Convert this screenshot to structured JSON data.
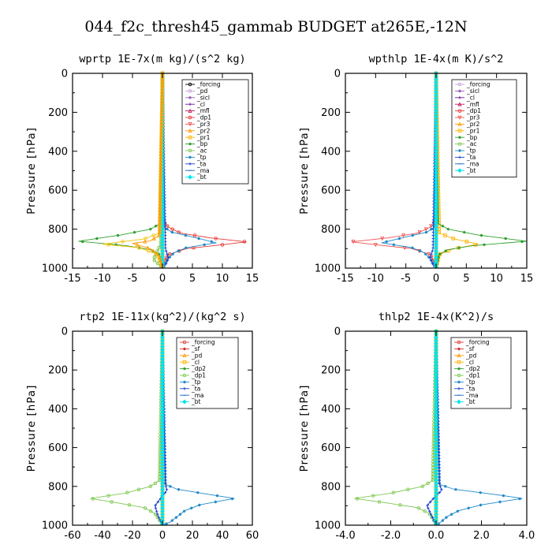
{
  "figure_title": "044_f2c_thresh45_gammab  BUDGET at265E,-12N",
  "chart_data": [
    {
      "type": "line",
      "title": "wprtp   1E-7x(m kg)/(s^2 kg)",
      "ylabel": "Pressure [hPa]",
      "xlim": [
        -15,
        15
      ],
      "ylim": [
        1000,
        0
      ],
      "xticks": [
        -15,
        -10,
        -5,
        0,
        5,
        10,
        15
      ],
      "xtick_labels": [
        "-15",
        "-10",
        "-5",
        "0",
        "5",
        "10",
        "15"
      ],
      "yticks": [
        0,
        200,
        400,
        600,
        800,
        1000
      ],
      "ytick_labels": [
        "0",
        "200",
        "400",
        "600",
        "800",
        "1000"
      ],
      "legend_position": "top-right",
      "series": [
        {
          "name": "_forcing",
          "color": "#000000",
          "marker": "circle",
          "x": [
            0,
            0
          ],
          "y": [
            0,
            1000
          ]
        },
        {
          "name": "_pd",
          "color": "#c9a0dc",
          "marker": "circle",
          "x": [
            0,
            0
          ],
          "y": [
            0,
            1000
          ]
        },
        {
          "name": "_sicl",
          "color": "#9b59b6",
          "marker": "star",
          "x": [
            0,
            0
          ],
          "y": [
            0,
            1000
          ]
        },
        {
          "name": "_cl",
          "color": "#6a1b9a",
          "marker": "plus",
          "x": [
            0,
            0
          ],
          "y": [
            0,
            1000
          ]
        },
        {
          "name": "_mfl",
          "color": "#c2185b",
          "marker": "triangle",
          "x": [
            0,
            0
          ],
          "y": [
            0,
            1000
          ]
        },
        {
          "name": "_dp1",
          "color": "#e53935",
          "marker": "circle",
          "x": [
            0,
            0.2,
            1,
            3,
            8,
            14,
            10,
            4,
            1,
            0.2,
            0
          ],
          "y": [
            0,
            760,
            790,
            820,
            845,
            865,
            880,
            900,
            930,
            970,
            1000
          ]
        },
        {
          "name": "_pr3",
          "color": "#ef5350",
          "marker": "triangle-down",
          "x": [
            0,
            0
          ],
          "y": [
            0,
            1000
          ]
        },
        {
          "name": "_pr2",
          "color": "#ff9800",
          "marker": "triangle",
          "x": [
            0,
            0
          ],
          "y": [
            0,
            1000
          ]
        },
        {
          "name": "_pr1",
          "color": "#ffb300",
          "marker": "square",
          "x": [
            0,
            0
          ],
          "y": [
            0,
            1000
          ]
        },
        {
          "name": "_bp",
          "color": "#2e9e2e",
          "marker": "star",
          "x": [
            0,
            -0.3,
            -2,
            -7,
            -14,
            -6,
            -2,
            -0.5,
            0
          ],
          "y": [
            0,
            770,
            800,
            830,
            862,
            885,
            905,
            930,
            1000
          ]
        },
        {
          "name": "_ac",
          "color": "#7ec850",
          "marker": "circle",
          "x": [
            0,
            -0.3,
            -1,
            -1.5,
            -0.5,
            0
          ],
          "y": [
            0,
            880,
            920,
            955,
            985,
            1000
          ]
        },
        {
          "name": "_tp",
          "color": "#1e88c8",
          "marker": "star",
          "x": [
            0,
            0.3,
            1.5,
            5,
            9,
            4,
            2,
            1,
            0.3,
            0
          ],
          "y": [
            0,
            790,
            815,
            840,
            870,
            895,
            920,
            950,
            980,
            1000
          ]
        },
        {
          "name": "_ta",
          "color": "#1a3fcf",
          "marker": "plus",
          "x": [
            0,
            0.5,
            1,
            0.5,
            0
          ],
          "y": [
            0,
            900,
            950,
            985,
            1000
          ]
        },
        {
          "name": "_ma",
          "color": "#1565c0",
          "marker": "dash",
          "x": [
            0,
            0
          ],
          "y": [
            0,
            1000
          ]
        },
        {
          "name": "_bt",
          "color": "#00e5ee",
          "marker": "diamond",
          "x": [
            0,
            0
          ],
          "y": [
            0,
            1000
          ]
        },
        {
          "name": "",
          "color": "#f1c40f",
          "marker": "circle",
          "x": [
            0,
            -0.5,
            -3,
            -10,
            -4,
            -1,
            0
          ],
          "y": [
            0,
            820,
            850,
            877,
            895,
            925,
            1000
          ]
        },
        {
          "name": "",
          "color": "#ff9800",
          "marker": "triangle",
          "x": [
            0,
            -0.5,
            -2,
            -5,
            -2,
            -0.5,
            0
          ],
          "y": [
            0,
            830,
            860,
            873,
            900,
            940,
            1000
          ]
        }
      ]
    },
    {
      "type": "line",
      "title": "wpthlp   1E-4x(m K)/s^2",
      "ylabel": "Pressure [hPa]",
      "xlim": [
        -15,
        15
      ],
      "ylim": [
        1000,
        0
      ],
      "xticks": [
        -15,
        -10,
        -5,
        0,
        5,
        10,
        15
      ],
      "xtick_labels": [
        "-15",
        "-10",
        "-5",
        "0",
        "5",
        "10",
        "15"
      ],
      "yticks": [
        0,
        200,
        400,
        600,
        800,
        1000
      ],
      "ytick_labels": [
        "0",
        "200",
        "400",
        "600",
        "800",
        "1000"
      ],
      "legend_position": "top-right",
      "series": [
        {
          "name": "_forcing",
          "color": "#c9a0dc",
          "marker": "circle",
          "x": [
            0,
            0
          ],
          "y": [
            0,
            1000
          ]
        },
        {
          "name": "_sicl",
          "color": "#9b59b6",
          "marker": "star",
          "x": [
            0,
            0
          ],
          "y": [
            0,
            1000
          ]
        },
        {
          "name": "_cl",
          "color": "#6a1b9a",
          "marker": "plus",
          "x": [
            0,
            0
          ],
          "y": [
            0,
            1000
          ]
        },
        {
          "name": "_mfl",
          "color": "#c2185b",
          "marker": "triangle",
          "x": [
            0,
            0
          ],
          "y": [
            0,
            1000
          ]
        },
        {
          "name": "_dp1",
          "color": "#e53935",
          "marker": "circle",
          "x": [
            0,
            0
          ],
          "y": [
            0,
            1000
          ]
        },
        {
          "name": "_pr3",
          "color": "#ef5350",
          "marker": "triangle-down",
          "x": [
            0,
            -0.2,
            -1,
            -3,
            -8,
            -14,
            -10,
            -4,
            -1,
            -0.2,
            0
          ],
          "y": [
            0,
            760,
            790,
            820,
            845,
            865,
            880,
            900,
            930,
            970,
            1000
          ]
        },
        {
          "name": "_pr2",
          "color": "#ff9800",
          "marker": "triangle",
          "x": [
            0,
            0
          ],
          "y": [
            0,
            1000
          ]
        },
        {
          "name": "_pr1",
          "color": "#ffb300",
          "marker": "square",
          "x": [
            0,
            0.5,
            3,
            7,
            3,
            0.5,
            0
          ],
          "y": [
            0,
            820,
            850,
            877,
            900,
            930,
            1000
          ]
        },
        {
          "name": "_bp",
          "color": "#2e9e2e",
          "marker": "star",
          "x": [
            0,
            0.3,
            2,
            7,
            15,
            6,
            2,
            0.5,
            0
          ],
          "y": [
            0,
            770,
            800,
            830,
            862,
            885,
            905,
            930,
            1000
          ]
        },
        {
          "name": "_ac",
          "color": "#7ec850",
          "marker": "circle",
          "x": [
            0,
            0
          ],
          "y": [
            0,
            1000
          ]
        },
        {
          "name": "_tp",
          "color": "#1e88c8",
          "marker": "star",
          "x": [
            0,
            -0.3,
            -1.5,
            -5,
            -9,
            -4,
            -2,
            -1,
            -0.3,
            0
          ],
          "y": [
            0,
            790,
            815,
            840,
            870,
            895,
            920,
            950,
            980,
            1000
          ]
        },
        {
          "name": "_ta",
          "color": "#1a3fcf",
          "marker": "plus",
          "x": [
            0,
            -0.5,
            -1,
            -0.5,
            0
          ],
          "y": [
            0,
            900,
            950,
            985,
            1000
          ]
        },
        {
          "name": "_ma",
          "color": "#1565c0",
          "marker": "dash",
          "x": [
            0,
            0
          ],
          "y": [
            0,
            1000
          ]
        },
        {
          "name": "_bt",
          "color": "#00e5ee",
          "marker": "diamond",
          "x": [
            0,
            0
          ],
          "y": [
            0,
            1000
          ]
        }
      ]
    },
    {
      "type": "line",
      "title": "rtp2   1E-11x(kg^2)/(kg^2 s)",
      "ylabel": "Pressure [hPa]",
      "xlim": [
        -60,
        60
      ],
      "ylim": [
        1000,
        0
      ],
      "xticks": [
        -60,
        -40,
        -20,
        0,
        20,
        40,
        60
      ],
      "xtick_labels": [
        "-60",
        "-40",
        "-20",
        "0",
        "20",
        "40",
        "60"
      ],
      "yticks": [
        0,
        200,
        400,
        600,
        800,
        1000
      ],
      "ytick_labels": [
        "0",
        "200",
        "400",
        "600",
        "800",
        "1000"
      ],
      "legend_position": "top-right",
      "series": [
        {
          "name": "_forcing",
          "color": "#e53935",
          "marker": "circle",
          "x": [
            0,
            0
          ],
          "y": [
            0,
            1000
          ]
        },
        {
          "name": "_sf",
          "color": "#d32f2f",
          "marker": "star",
          "x": [
            0,
            0
          ],
          "y": [
            0,
            1000
          ]
        },
        {
          "name": "_pd",
          "color": "#ff9800",
          "marker": "triangle",
          "x": [
            0,
            0
          ],
          "y": [
            0,
            1000
          ]
        },
        {
          "name": "_cl",
          "color": "#ffb300",
          "marker": "square",
          "x": [
            0,
            0
          ],
          "y": [
            0,
            1000
          ]
        },
        {
          "name": "_dp2",
          "color": "#2e9e2e",
          "marker": "star",
          "x": [
            0,
            0
          ],
          "y": [
            0,
            1000
          ]
        },
        {
          "name": "_dp1",
          "color": "#7ec850",
          "marker": "circle",
          "x": [
            0,
            -2,
            -8,
            -25,
            -48,
            -30,
            -12,
            -5,
            -2,
            0
          ],
          "y": [
            0,
            770,
            800,
            835,
            862,
            885,
            910,
            940,
            975,
            1000
          ]
        },
        {
          "name": "_tp",
          "color": "#1e88c8",
          "marker": "star",
          "x": [
            0,
            2,
            10,
            30,
            48,
            25,
            15,
            10,
            5,
            0
          ],
          "y": [
            0,
            790,
            815,
            840,
            862,
            895,
            925,
            955,
            985,
            1000
          ]
        },
        {
          "name": "_ta",
          "color": "#1a3fcf",
          "marker": "plus",
          "x": [
            0,
            2,
            3,
            -1,
            -5,
            -3,
            0
          ],
          "y": [
            0,
            790,
            820,
            860,
            900,
            950,
            1000
          ]
        },
        {
          "name": "_ma",
          "color": "#1565c0",
          "marker": "dash",
          "x": [
            0,
            0
          ],
          "y": [
            0,
            1000
          ]
        },
        {
          "name": "_bt",
          "color": "#00e5ee",
          "marker": "diamond",
          "x": [
            0,
            0
          ],
          "y": [
            0,
            1000
          ]
        }
      ]
    },
    {
      "type": "line",
      "title": "thlp2   1E-4x(K^2)/s",
      "ylabel": "Pressure [hPa]",
      "xlim": [
        -4,
        4
      ],
      "ylim": [
        1000,
        0
      ],
      "xticks": [
        -4,
        -2,
        0,
        2,
        4
      ],
      "xtick_labels": [
        "-4.0",
        "-2.0",
        "0.0",
        "2.0",
        "4.0"
      ],
      "yticks": [
        0,
        200,
        400,
        600,
        800,
        1000
      ],
      "ytick_labels": [
        "0",
        "200",
        "400",
        "600",
        "800",
        "1000"
      ],
      "legend_position": "top-right",
      "series": [
        {
          "name": "_forcing",
          "color": "#e53935",
          "marker": "circle",
          "x": [
            0,
            0
          ],
          "y": [
            0,
            1000
          ]
        },
        {
          "name": "_sf",
          "color": "#d32f2f",
          "marker": "star",
          "x": [
            0,
            0
          ],
          "y": [
            0,
            1000
          ]
        },
        {
          "name": "_pd",
          "color": "#ff9800",
          "marker": "triangle",
          "x": [
            0,
            0
          ],
          "y": [
            0,
            1000
          ]
        },
        {
          "name": "_cl",
          "color": "#ffb300",
          "marker": "square",
          "x": [
            0,
            0
          ],
          "y": [
            0,
            1000
          ]
        },
        {
          "name": "_dp2",
          "color": "#2e9e2e",
          "marker": "star",
          "x": [
            0,
            0
          ],
          "y": [
            0,
            1000
          ]
        },
        {
          "name": "_dp1",
          "color": "#7ec850",
          "marker": "circle",
          "x": [
            0,
            -0.15,
            -0.6,
            -2,
            -3.6,
            -2.2,
            -0.8,
            -0.3,
            -0.1,
            0
          ],
          "y": [
            0,
            770,
            800,
            835,
            862,
            885,
            910,
            940,
            975,
            1000
          ]
        },
        {
          "name": "_tp",
          "color": "#1e88c8",
          "marker": "star",
          "x": [
            0,
            0.15,
            0.8,
            2.5,
            3.8,
            2,
            1,
            0.5,
            0.2,
            0
          ],
          "y": [
            0,
            790,
            815,
            840,
            862,
            895,
            925,
            955,
            985,
            1000
          ]
        },
        {
          "name": "_ta",
          "color": "#1a3fcf",
          "marker": "plus",
          "x": [
            0,
            0.15,
            0.25,
            -0.1,
            -0.4,
            -0.2,
            0
          ],
          "y": [
            0,
            790,
            820,
            860,
            900,
            950,
            1000
          ]
        },
        {
          "name": "_ma",
          "color": "#1565c0",
          "marker": "dash",
          "x": [
            0,
            0
          ],
          "y": [
            0,
            1000
          ]
        },
        {
          "name": "_bt",
          "color": "#00e5ee",
          "marker": "diamond",
          "x": [
            0,
            0
          ],
          "y": [
            0,
            1000
          ]
        }
      ]
    }
  ]
}
